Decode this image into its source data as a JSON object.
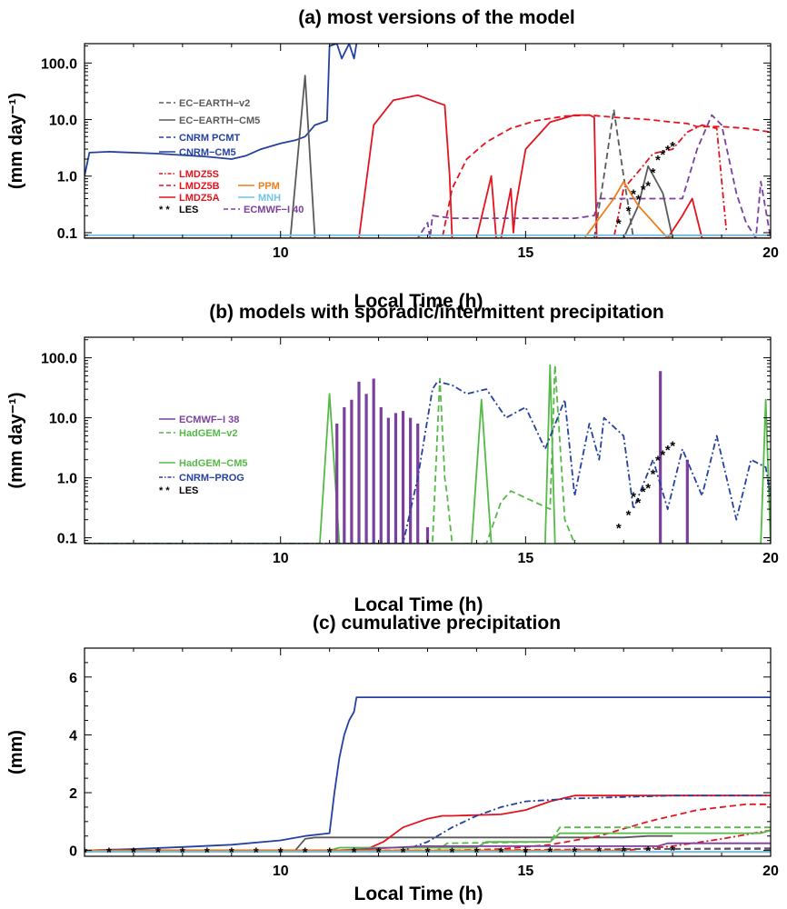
{
  "chart_data": [
    {
      "panel": "a",
      "type": "line",
      "title": "(a) most versions of the model",
      "xlabel": "Local Time (h)",
      "ylabel": "(mm day⁻¹)",
      "yscale": "log",
      "xlim": [
        6,
        20
      ],
      "ylim": [
        0.08,
        220
      ],
      "xticks": [
        10,
        15,
        20
      ],
      "yticks": [
        0.1,
        1,
        10,
        100
      ],
      "ytick_labels": [
        "0.1",
        "1.0",
        "10.0",
        "100.0"
      ],
      "legend": [
        {
          "label": "EC−EARTH−v2",
          "color": "#5a5a5a",
          "dash": "dashed"
        },
        {
          "label": "EC−EARTH−CM5",
          "color": "#5a5a5a",
          "dash": "solid"
        },
        {
          "label": "CNRM PCMT",
          "color": "#2541a0",
          "dash": "dashed"
        },
        {
          "label": "CNRM−CM5",
          "color": "#2541a0",
          "dash": "solid"
        },
        {
          "label": "LMDZ5S",
          "color": "#e4141e",
          "dash": "dashdot"
        },
        {
          "label": "LMDZ5B",
          "color": "#e4141e",
          "dash": "dashed"
        },
        {
          "label": "LMDZ5A",
          "color": "#e4141e",
          "dash": "solid"
        },
        {
          "label": "PPM",
          "color": "#f07d1a",
          "dash": "solid"
        },
        {
          "label": "MNH",
          "color": "#6fc3e6",
          "dash": "solid"
        },
        {
          "label": "LES",
          "color": "#000000",
          "dash": "markers"
        },
        {
          "label": "ECMWF−I 40",
          "color": "#7b3f9e",
          "dash": "dashed"
        }
      ],
      "series": [
        {
          "name": "CNRM−CM5",
          "color": "#2541a0",
          "dash": "solid",
          "x": [
            6.0,
            6.1,
            6.5,
            7.5,
            8.5,
            9.0,
            9.3,
            9.6,
            10.0,
            10.3,
            10.5,
            10.7,
            10.95,
            11.0,
            11.15,
            11.25,
            11.4,
            11.5,
            11.55
          ],
          "y": [
            1.0,
            2.6,
            2.7,
            2.5,
            2.2,
            2.0,
            2.3,
            3.0,
            3.8,
            4.3,
            5.0,
            8.0,
            9.5,
            200,
            220,
            120,
            220,
            120,
            220
          ]
        },
        {
          "name": "EC−EARTH−CM5",
          "color": "#5a5a5a",
          "dash": "solid",
          "x": [
            6.0,
            10.2,
            10.5,
            10.7,
            17.0,
            17.3,
            17.5,
            17.8,
            18.0
          ],
          "y": [
            0.08,
            0.08,
            60,
            0.08,
            0.08,
            0.3,
            1.5,
            0.5,
            0.08
          ]
        },
        {
          "name": "EC−EARTH−v2",
          "color": "#5a5a5a",
          "dash": "dashed",
          "x": [
            6.0,
            16.4,
            16.6,
            16.8,
            17.0,
            17.2,
            18.0
          ],
          "y": [
            0.08,
            0.08,
            1.0,
            15,
            1.0,
            0.08,
            0.08
          ]
        },
        {
          "name": "LMDZ5A",
          "color": "#e4141e",
          "dash": "solid",
          "x": [
            6.0,
            11.6,
            11.9,
            12.3,
            12.8,
            13.2,
            13.35,
            13.45,
            13.5,
            14.0,
            14.3,
            14.4,
            14.5,
            14.7,
            14.75,
            14.8,
            15.0,
            15.5,
            16.0,
            16.3,
            16.4,
            16.45,
            17.9,
            18.2,
            18.4,
            18.6,
            20.0
          ],
          "y": [
            0.08,
            0.08,
            8,
            22,
            27,
            20,
            18,
            1,
            0.08,
            0.08,
            1,
            0.08,
            0.08,
            0.6,
            0.1,
            0.3,
            3,
            9,
            12,
            12,
            11,
            0.08,
            0.08,
            0.2,
            0.4,
            0.08,
            0.08
          ]
        },
        {
          "name": "LMDZ5B",
          "color": "#e4141e",
          "dash": "dashed",
          "x": [
            6.0,
            13.3,
            13.5,
            13.8,
            14.2,
            14.7,
            15.2,
            15.8,
            16.3,
            16.8,
            17.5,
            18.0,
            18.3,
            18.5,
            19.0,
            19.5,
            20.0
          ],
          "y": [
            0.08,
            0.08,
            0.6,
            2.0,
            4.0,
            7.0,
            9.5,
            11.5,
            12,
            11,
            10,
            9,
            8.5,
            7.5,
            7.5,
            7.0,
            6.0
          ]
        },
        {
          "name": "LMDZ5S",
          "color": "#e4141e",
          "dash": "dashdot",
          "x": [
            6.0,
            16.8,
            17.0,
            17.3,
            17.6,
            18.0,
            18.3,
            18.6,
            18.9,
            19.1
          ],
          "y": [
            0.08,
            0.08,
            0.6,
            1.2,
            2.5,
            3.0,
            6.0,
            8.0,
            7.0,
            0.1
          ]
        },
        {
          "name": "ECMWF−I 40",
          "color": "#7b3f9e",
          "dash": "dashed",
          "x": [
            6.0,
            12.8,
            13.0,
            13.05,
            13.1,
            13.5,
            14.0,
            15.0,
            16.0,
            16.4,
            16.5,
            16.8,
            17.4,
            18.2,
            18.5,
            18.8,
            19.0,
            19.3,
            19.5,
            19.7,
            19.8,
            20.0
          ],
          "y": [
            0.08,
            0.08,
            0.15,
            0.08,
            0.2,
            0.18,
            0.18,
            0.18,
            0.18,
            0.2,
            0.4,
            0.4,
            0.4,
            0.4,
            3.0,
            12.0,
            8.0,
            0.5,
            0.15,
            0.08,
            0.8,
            0.08
          ]
        },
        {
          "name": "PPM",
          "color": "#f07d1a",
          "dash": "solid",
          "x": [
            6.0,
            16.2,
            16.8,
            17.0,
            17.3,
            17.9,
            18.0,
            19.0,
            20.0
          ],
          "y": [
            0.08,
            0.08,
            0.4,
            0.8,
            0.3,
            0.08,
            0.09,
            0.09,
            0.09
          ]
        },
        {
          "name": "MNH",
          "color": "#6fc3e6",
          "dash": "solid",
          "x": [
            6.0,
            20.0
          ],
          "y": [
            0.09,
            0.09
          ]
        },
        {
          "name": "LES",
          "color": "#000000",
          "dash": "markers",
          "x": [
            16.9,
            17.1,
            17.2,
            17.3,
            17.4,
            17.5,
            17.6,
            17.7,
            17.8,
            17.9,
            18.0
          ],
          "y": [
            0.15,
            0.25,
            0.5,
            0.4,
            0.6,
            0.7,
            1.2,
            2.0,
            2.5,
            3.0,
            3.5
          ]
        }
      ]
    },
    {
      "panel": "b",
      "type": "line",
      "title": "(b) models with sporadic/intermittent precipitation",
      "xlabel": "Local Time (h)",
      "ylabel": "(mm day⁻¹)",
      "yscale": "log",
      "xlim": [
        6,
        20
      ],
      "ylim": [
        0.08,
        220
      ],
      "xticks": [
        10,
        15,
        20
      ],
      "yticks": [
        0.1,
        1,
        10,
        100
      ],
      "ytick_labels": [
        "0.1",
        "1.0",
        "10.0",
        "100.0"
      ],
      "legend": [
        {
          "label": "ECMWF−I 38",
          "color": "#7b3f9e",
          "dash": "solid"
        },
        {
          "label": "HadGEM−v2",
          "color": "#55b947",
          "dash": "dashed"
        },
        {
          "label": "HadGEM−CM5",
          "color": "#55b947",
          "dash": "solid"
        },
        {
          "label": "CNRM−PROG",
          "color": "#2541a0",
          "dash": "dashdot"
        },
        {
          "label": "LES",
          "color": "#000000",
          "dash": "markers"
        }
      ],
      "series": [
        {
          "name": "HadGEM−CM5",
          "color": "#55b947",
          "dash": "solid",
          "x": [
            6.0,
            10.8,
            11.0,
            11.2,
            13.9,
            14.1,
            14.3,
            15.4,
            15.5,
            15.6,
            19.8,
            19.9,
            20.0
          ],
          "y": [
            0.08,
            0.08,
            25,
            0.08,
            0.08,
            20,
            0.08,
            0.08,
            75,
            0.08,
            0.08,
            20,
            0.08
          ]
        },
        {
          "name": "HadGEM−v2",
          "color": "#55b947",
          "dash": "dashed",
          "x": [
            6.0,
            13.1,
            13.25,
            13.35,
            13.4,
            13.5,
            14.2,
            14.5,
            14.7,
            15.5,
            15.6,
            15.8,
            16.0
          ],
          "y": [
            0.08,
            0.08,
            45,
            1.0,
            0.5,
            0.08,
            0.08,
            0.4,
            0.6,
            0.3,
            75,
            0.2,
            0.08
          ]
        },
        {
          "name": "ECMWF−I 38",
          "color": "#7b3f9e",
          "dash": "solid",
          "bars_from": 0.08,
          "x": [
            11.15,
            11.3,
            11.45,
            11.6,
            11.75,
            11.9,
            12.05,
            12.2,
            12.35,
            12.5,
            12.65,
            12.8,
            13.0,
            17.75,
            18.3
          ],
          "y": [
            8,
            15,
            20,
            40,
            25,
            45,
            15,
            10,
            12,
            13,
            10,
            8,
            0.15,
            60,
            2.0
          ]
        },
        {
          "name": "CNRM−PROG",
          "color": "#2541a0",
          "dash": "dashdot",
          "x": [
            6.0,
            12.5,
            12.8,
            13.1,
            13.2,
            13.5,
            13.8,
            14.2,
            14.6,
            15.0,
            15.4,
            15.8,
            16.0,
            16.3,
            16.5,
            16.6,
            17.0,
            17.2,
            17.6,
            17.9,
            18.2,
            18.6,
            18.9,
            19.3,
            19.6,
            19.9,
            20.0
          ],
          "y": [
            0.08,
            0.08,
            1.0,
            30,
            40,
            35,
            25,
            30,
            10,
            15,
            3.0,
            20,
            0.5,
            8,
            2.0,
            10,
            5,
            0.3,
            2,
            0.3,
            3,
            0.5,
            5,
            0.2,
            2,
            1.5,
            0.5
          ]
        },
        {
          "name": "LES",
          "color": "#000000",
          "dash": "markers",
          "x": [
            16.9,
            17.1,
            17.2,
            17.3,
            17.4,
            17.5,
            17.6,
            17.7,
            17.8,
            17.9,
            18.0
          ],
          "y": [
            0.15,
            0.25,
            0.5,
            0.4,
            0.6,
            0.7,
            1.2,
            2.0,
            2.5,
            3.0,
            3.5
          ]
        }
      ]
    },
    {
      "panel": "c",
      "type": "line",
      "title": "(c) cumulative precipitation",
      "xlabel": "Local Time (h)",
      "ylabel": "(mm)",
      "yscale": "linear",
      "xlim": [
        6,
        20
      ],
      "ylim": [
        -0.2,
        7
      ],
      "xticks": [
        10,
        15,
        20
      ],
      "yticks": [
        0,
        2,
        4,
        6
      ],
      "ytick_labels": [
        "0",
        "2",
        "4",
        "6"
      ],
      "series": [
        {
          "name": "CNRM−CM5",
          "color": "#2541a0",
          "dash": "solid",
          "x": [
            6.0,
            7.0,
            8.0,
            9.0,
            10.0,
            10.5,
            11.0,
            11.1,
            11.2,
            11.3,
            11.4,
            11.5,
            11.55,
            20.0
          ],
          "y": [
            0.0,
            0.05,
            0.12,
            0.2,
            0.35,
            0.5,
            0.6,
            2.0,
            3.2,
            4.0,
            4.5,
            4.8,
            5.3,
            5.3
          ]
        },
        {
          "name": "EC−EARTH−CM5",
          "color": "#5a5a5a",
          "dash": "solid",
          "x": [
            6.0,
            10.3,
            10.5,
            10.7,
            17.0,
            17.5,
            18.0
          ],
          "y": [
            0.0,
            0.0,
            0.4,
            0.45,
            0.45,
            0.5,
            0.5
          ]
        },
        {
          "name": "LMDZ5A",
          "color": "#e4141e",
          "dash": "solid",
          "x": [
            6.0,
            11.7,
            12.1,
            12.5,
            13.0,
            13.3,
            13.5,
            14.5,
            15.0,
            15.5,
            16.0,
            16.5,
            20.0
          ],
          "y": [
            0.0,
            0.0,
            0.3,
            0.8,
            1.1,
            1.2,
            1.2,
            1.25,
            1.4,
            1.7,
            1.9,
            1.9,
            1.9
          ]
        },
        {
          "name": "LMDZ5B",
          "color": "#e4141e",
          "dash": "dashed",
          "x": [
            6.0,
            13.5,
            14.5,
            15.5,
            16.5,
            17.5,
            18.5,
            19.5,
            20.0
          ],
          "y": [
            0.0,
            0.0,
            0.05,
            0.2,
            0.5,
            1.0,
            1.4,
            1.6,
            1.6
          ]
        },
        {
          "name": "LMDZ5S",
          "color": "#e4141e",
          "dash": "dashdot",
          "x": [
            6.0,
            17.0,
            18.0,
            19.0,
            20.0
          ],
          "y": [
            0.0,
            0.0,
            0.15,
            0.4,
            0.7
          ]
        },
        {
          "name": "CNRM−PROG",
          "color": "#2541a0",
          "dash": "dashdot",
          "x": [
            6.0,
            12.5,
            13.0,
            13.5,
            14.0,
            14.5,
            15.0,
            16.0,
            17.0,
            18.0,
            19.0,
            20.0
          ],
          "y": [
            0.0,
            0.0,
            0.3,
            0.8,
            1.2,
            1.5,
            1.7,
            1.8,
            1.85,
            1.9,
            1.9,
            1.9
          ]
        },
        {
          "name": "HadGEM−CM5",
          "color": "#55b947",
          "dash": "solid",
          "x": [
            6.0,
            11.0,
            11.2,
            14.0,
            14.2,
            15.5,
            15.7,
            19.8,
            20.0
          ],
          "y": [
            0.0,
            0.0,
            0.1,
            0.1,
            0.3,
            0.3,
            0.6,
            0.6,
            0.7
          ]
        },
        {
          "name": "HadGEM−v2",
          "color": "#55b947",
          "dash": "dashed",
          "x": [
            6.0,
            13.2,
            13.4,
            15.5,
            15.7,
            20.0
          ],
          "y": [
            0.0,
            0.0,
            0.25,
            0.3,
            0.8,
            0.8
          ]
        },
        {
          "name": "ECMWF−I 38",
          "color": "#7b3f9e",
          "dash": "solid",
          "x": [
            6.0,
            11.1,
            12.9,
            17.7,
            17.9,
            20.0
          ],
          "y": [
            0.0,
            0.0,
            0.15,
            0.15,
            0.25,
            0.25
          ]
        },
        {
          "name": "ECMWF−I 40",
          "color": "#7b3f9e",
          "dash": "dashed",
          "x": [
            6.0,
            13.0,
            20.0
          ],
          "y": [
            0.0,
            0.0,
            0.08
          ]
        },
        {
          "name": "EC−EARTH−v2",
          "color": "#5a5a5a",
          "dash": "dashed",
          "x": [
            6.0,
            16.6,
            16.9,
            20.0
          ],
          "y": [
            0.0,
            0.0,
            0.05,
            0.05
          ]
        },
        {
          "name": "PPM",
          "color": "#f07d1a",
          "dash": "solid",
          "x": [
            6.0,
            16.5,
            17.5,
            20.0
          ],
          "y": [
            0.0,
            0.0,
            -0.05,
            -0.05
          ]
        },
        {
          "name": "MNH",
          "color": "#6fc3e6",
          "dash": "solid",
          "x": [
            6.0,
            20.0
          ],
          "y": [
            -0.05,
            -0.05
          ]
        },
        {
          "name": "LES",
          "color": "#000000",
          "dash": "markers",
          "x": [
            6.0,
            6.5,
            7.0,
            7.5,
            8.0,
            8.5,
            9.0,
            9.5,
            10.0,
            10.5,
            11.0,
            11.5,
            12.0,
            12.5,
            13.0,
            13.5,
            14.0,
            14.5,
            15.0,
            15.5,
            16.0,
            16.5,
            17.0,
            17.5,
            18.0
          ],
          "y": [
            -0.02,
            -0.02,
            -0.02,
            -0.02,
            -0.02,
            -0.02,
            -0.02,
            -0.02,
            -0.02,
            -0.02,
            -0.02,
            -0.02,
            -0.02,
            -0.02,
            -0.02,
            -0.02,
            -0.02,
            -0.02,
            -0.02,
            -0.01,
            -0.01,
            0.0,
            0.0,
            0.02,
            0.03
          ]
        }
      ]
    }
  ]
}
